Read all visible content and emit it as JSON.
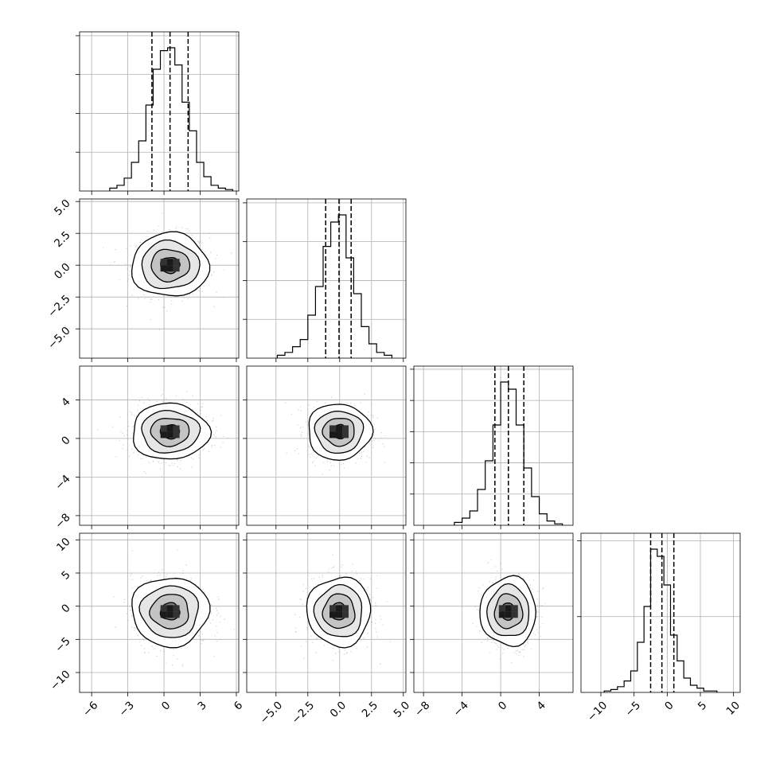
{
  "chart_data": {
    "type": "corner",
    "title": "",
    "grid": true,
    "n_params": 4,
    "params": [
      {
        "range": [
          -7,
          6.2
        ],
        "ticks": [
          -6,
          -3,
          0,
          3,
          6
        ],
        "tick_labels": [
          "−6",
          "−3",
          "0",
          "3",
          "6"
        ],
        "quantiles": [
          -1.0,
          0.5,
          2.0
        ],
        "hist_x": [
          -4.2,
          -3.6,
          -3.0,
          -2.4,
          -1.8,
          -1.2,
          -0.6,
          0.0,
          0.6,
          1.2,
          1.8,
          2.4,
          3.0,
          3.6,
          4.2,
          4.8,
          5.4
        ],
        "hist_counts": [
          0.02,
          0.04,
          0.09,
          0.2,
          0.35,
          0.6,
          0.85,
          0.98,
          1.0,
          0.88,
          0.62,
          0.42,
          0.2,
          0.1,
          0.04,
          0.02,
          0.01
        ],
        "hist_yticks": 4
      },
      {
        "range": [
          -7.3,
          5.2
        ],
        "ticks": [
          -5.0,
          -2.5,
          0.0,
          2.5,
          5.0
        ],
        "tick_labels": [
          "−5.0",
          "−2.5",
          "0.0",
          "2.5",
          "5.0"
        ],
        "quantiles": [
          -1.1,
          -0.05,
          0.9
        ],
        "hist_x": [
          -4.6,
          -4.0,
          -3.4,
          -2.8,
          -2.2,
          -1.6,
          -1.0,
          -0.4,
          0.2,
          0.8,
          1.4,
          2.0,
          2.6,
          3.2,
          3.8
        ],
        "hist_counts": [
          0.02,
          0.04,
          0.08,
          0.13,
          0.3,
          0.5,
          0.78,
          0.95,
          1.0,
          0.7,
          0.45,
          0.22,
          0.1,
          0.04,
          0.02
        ],
        "hist_yticks": 4
      },
      {
        "range": [
          -9,
          7.5
        ],
        "ticks": [
          -8,
          -4,
          0,
          4
        ],
        "tick_labels": [
          "−8",
          "−4",
          "0",
          "4"
        ],
        "quantiles": [
          -0.6,
          0.8,
          2.4
        ],
        "hist_x": [
          -4.4,
          -3.6,
          -2.8,
          -2.0,
          -1.2,
          -0.4,
          0.4,
          1.2,
          2.0,
          2.8,
          3.6,
          4.4,
          5.2,
          6.0
        ],
        "hist_counts": [
          0.02,
          0.05,
          0.1,
          0.25,
          0.45,
          0.7,
          1.0,
          0.95,
          0.7,
          0.4,
          0.2,
          0.08,
          0.03,
          0.01
        ],
        "hist_yticks": 5
      },
      {
        "range": [
          -13,
          11
        ],
        "ticks": [
          -10,
          -5,
          0,
          5,
          10
        ],
        "tick_labels": [
          "−10",
          "−5",
          "0",
          "5",
          "10"
        ],
        "quantiles": [
          -2.5,
          -0.8,
          1.0
        ],
        "hist_x": [
          -9.0,
          -8.0,
          -7.0,
          -6.0,
          -5.0,
          -4.0,
          -3.0,
          -2.0,
          -1.0,
          0.0,
          1.0,
          2.0,
          3.0,
          4.0,
          5.0,
          6.0,
          7.0
        ],
        "hist_counts": [
          0.01,
          0.02,
          0.04,
          0.08,
          0.15,
          0.35,
          0.6,
          1.0,
          0.95,
          0.75,
          0.4,
          0.22,
          0.1,
          0.05,
          0.03,
          0.01,
          0.01
        ],
        "hist_yticks": 2
      }
    ],
    "pairs": [
      {
        "row": 1,
        "col": 0,
        "mean": [
          0.5,
          0.0
        ],
        "sd": [
          1.6,
          1.25
        ]
      },
      {
        "row": 2,
        "col": 0,
        "mean": [
          0.5,
          0.7
        ],
        "sd": [
          1.6,
          1.45
        ]
      },
      {
        "row": 2,
        "col": 1,
        "mean": [
          -0.05,
          0.7
        ],
        "sd": [
          1.25,
          1.45
        ]
      },
      {
        "row": 3,
        "col": 0,
        "mean": [
          0.5,
          -0.8
        ],
        "sd": [
          1.6,
          2.6
        ]
      },
      {
        "row": 3,
        "col": 1,
        "mean": [
          -0.05,
          -0.8
        ],
        "sd": [
          1.25,
          2.6
        ]
      },
      {
        "row": 3,
        "col": 2,
        "mean": [
          0.8,
          -0.8
        ],
        "sd": [
          1.45,
          2.6
        ]
      }
    ],
    "contour_levels_sigma": [
      0.5,
      1.0,
      1.5,
      2.0
    ]
  }
}
